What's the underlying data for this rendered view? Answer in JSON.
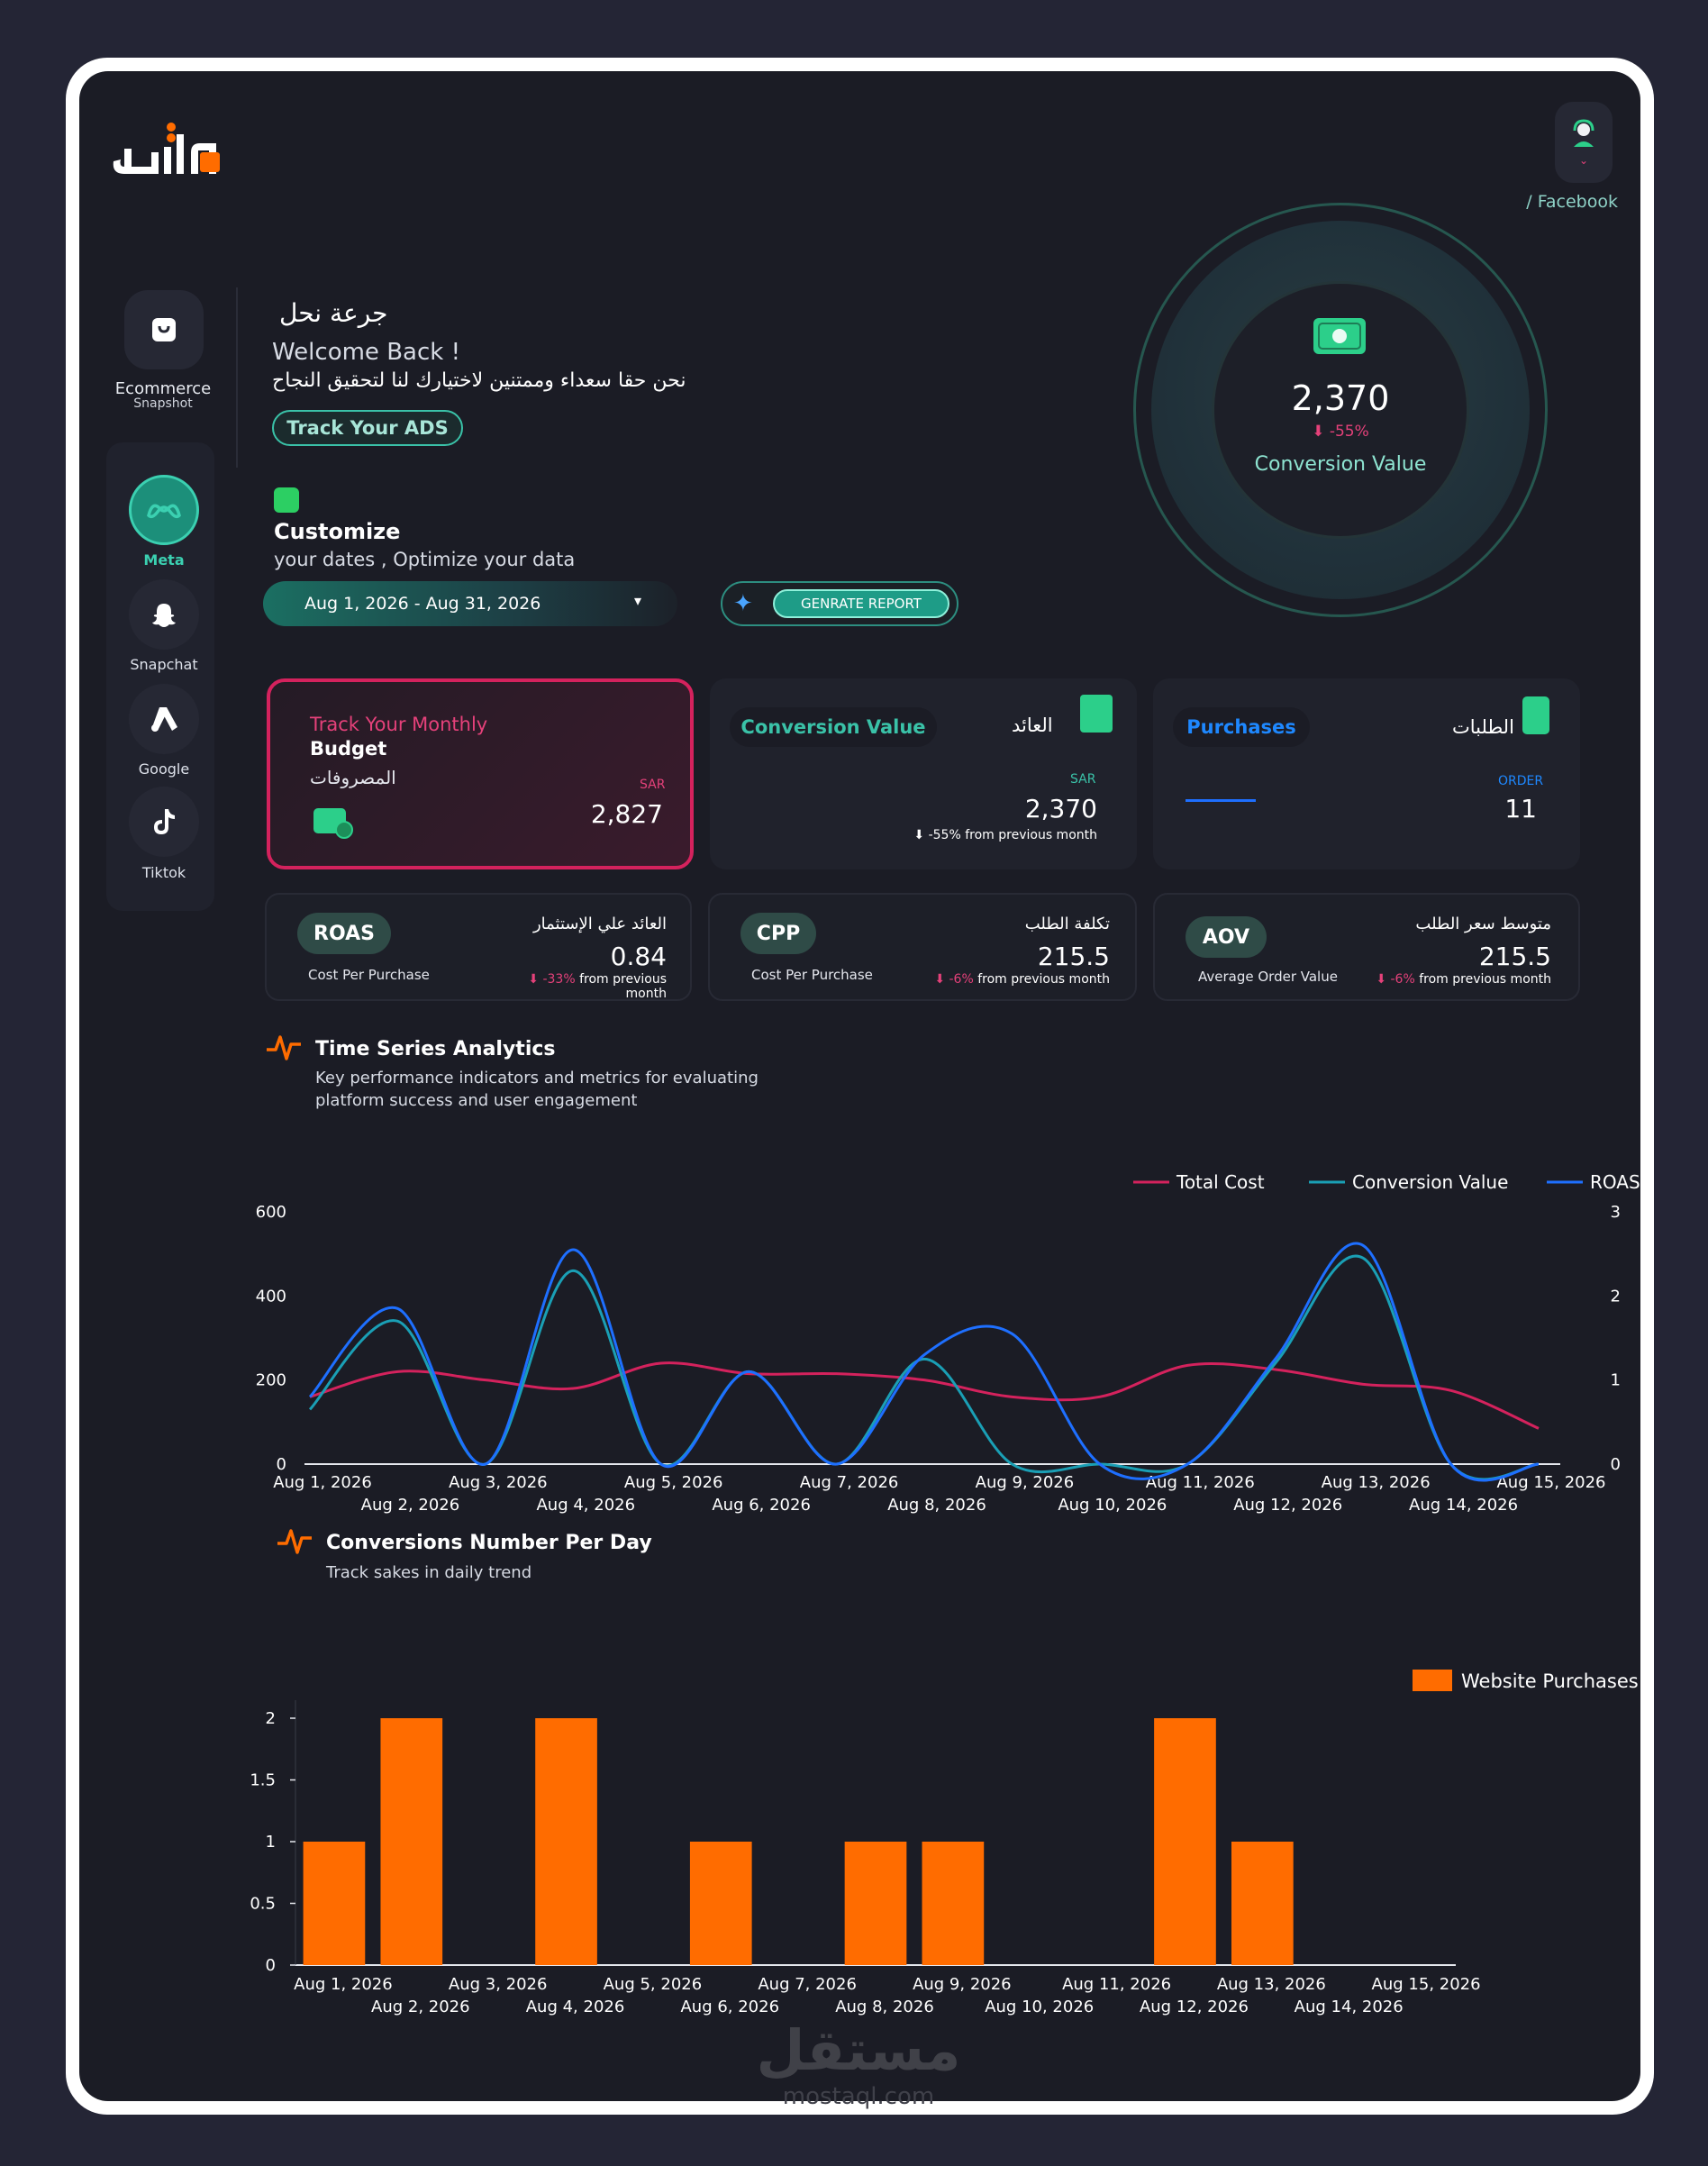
{
  "header": {
    "platform_crumb": "/ Facebook"
  },
  "sidebar": {
    "ecommerce_label": "Ecommerce",
    "ecommerce_sub": "Snapshot",
    "platforms": [
      {
        "label": "Meta",
        "icon": "meta-icon",
        "active": true
      },
      {
        "label": "Snapchat",
        "icon": "snapchat-icon",
        "active": false
      },
      {
        "label": "Google",
        "icon": "google-ads-icon",
        "active": false
      },
      {
        "label": "Tiktok",
        "icon": "tiktok-icon",
        "active": false
      }
    ]
  },
  "intro": {
    "brand_name": "جرعة نحل",
    "welcome": "Welcome Back !",
    "tagline": "نحن حقا سعداء وممتنين لاختيارك لنا لتحقيق النجاح",
    "track_button": "Track Your ADS",
    "customize_title": "Customize",
    "customize_sub": "your dates , Optimize your data",
    "date_range": "Aug 1, 2026 - Aug 31, 2026",
    "generate_button": "GENRATE REPORT"
  },
  "hero_metric": {
    "value": "2,370",
    "delta": "⬇ -55%",
    "label": "Conversion Value"
  },
  "cards": {
    "budget": {
      "line1": "Track Your Monthly",
      "line2": "Budget",
      "arabic": "المصروفات",
      "currency": "SAR",
      "value": "2,827"
    },
    "conversion": {
      "pill": "Conversion Value",
      "arabic": "العائد",
      "currency": "SAR",
      "value": "2,370",
      "note": "⬇ -55% from previous month"
    },
    "purchases": {
      "pill": "Purchases",
      "arabic": "الطلبات",
      "unit": "ORDER",
      "value": "11"
    }
  },
  "kpis": [
    {
      "pill": "ROAS",
      "arabic": "العائد علي الإستثمار",
      "value": "0.84",
      "desc": "Cost Per Purchase",
      "delta": "⬇ -33%",
      "delta_suffix": "from previous month"
    },
    {
      "pill": "CPP",
      "arabic": "تكلفة الطلب",
      "value": "215.5",
      "desc": "Cost Per Purchase",
      "delta": "⬇ -6%",
      "delta_suffix": "from previous month"
    },
    {
      "pill": "AOV",
      "arabic": "متوسط سعر الطلب",
      "value": "215.5",
      "desc": "Average Order Value",
      "delta": "⬇ -6%",
      "delta_suffix": "from previous month"
    }
  ],
  "time_series": {
    "title": "Time Series Analytics",
    "subtitle_1": "Key performance indicators and metrics for evaluating",
    "subtitle_2": "platform success and user engagement"
  },
  "conversions": {
    "title": "Conversions Number Per Day",
    "subtitle": "Track sakes in daily trend"
  },
  "watermark": {
    "text": "مستقل",
    "sub": "mostaql.com"
  },
  "chart_data": [
    {
      "type": "line",
      "title": "Time Series Analytics",
      "x": [
        "Aug 1, 2026",
        "Aug 2, 2026",
        "Aug 3, 2026",
        "Aug 4, 2026",
        "Aug 5, 2026",
        "Aug 6, 2026",
        "Aug 7, 2026",
        "Aug 8, 2026",
        "Aug 9, 2026",
        "Aug 10, 2026",
        "Aug 11, 2026",
        "Aug 12, 2026",
        "Aug 13, 2026",
        "Aug 14, 2026",
        "Aug 15, 2026"
      ],
      "ylim_left": [
        0,
        600
      ],
      "ylim_right": [
        0,
        3
      ],
      "yticks_left": [
        0,
        200,
        400,
        600
      ],
      "yticks_right": [
        0,
        1,
        2,
        3
      ],
      "legend_position": "top-right",
      "series": [
        {
          "name": "Total Cost",
          "color": "#d4225d",
          "axis": "left",
          "values": [
            160,
            220,
            200,
            180,
            240,
            215,
            215,
            200,
            160,
            160,
            235,
            225,
            190,
            175,
            85
          ]
        },
        {
          "name": "Conversion Value",
          "color": "#1a9fb5",
          "axis": "left",
          "values": [
            130,
            340,
            0,
            460,
            0,
            220,
            0,
            250,
            0,
            0,
            0,
            240,
            490,
            0,
            0
          ]
        },
        {
          "name": "ROAS",
          "color": "#1e6fff",
          "axis": "right",
          "values": [
            0.8,
            1.85,
            0,
            2.55,
            0,
            1.1,
            0,
            1.3,
            1.55,
            0,
            0,
            1.25,
            2.6,
            0,
            0
          ]
        }
      ]
    },
    {
      "type": "bar",
      "title": "Conversions Number Per Day",
      "categories": [
        "Aug 1, 2026",
        "Aug 2, 2026",
        "Aug 3, 2026",
        "Aug 4, 2026",
        "Aug 5, 2026",
        "Aug 6, 2026",
        "Aug 7, 2026",
        "Aug 8, 2026",
        "Aug 9, 2026",
        "Aug 10, 2026",
        "Aug 11, 2026",
        "Aug 12, 2026",
        "Aug 13, 2026",
        "Aug 14, 2026",
        "Aug 15, 2026"
      ],
      "series": [
        {
          "name": "Website Purchases",
          "color": "#ff6c00",
          "values": [
            1,
            2,
            0,
            2,
            0,
            1,
            0,
            1,
            1,
            0,
            0,
            2,
            1,
            0,
            0
          ]
        }
      ],
      "ylim": [
        0,
        2
      ],
      "yticks": [
        0,
        0.5,
        1,
        1.5,
        2
      ],
      "legend_position": "top-right"
    }
  ]
}
